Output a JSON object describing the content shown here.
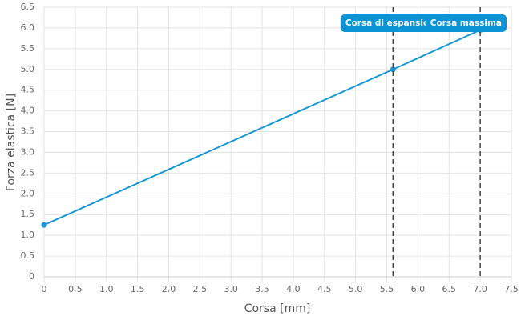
{
  "chart_data": {
    "type": "line",
    "x_label": "Corsa [mm]",
    "y_label": "Forza elastica [N]",
    "x": [
      0,
      5.6,
      7.0
    ],
    "series": [
      {
        "color": "#1a96d4",
        "values": [
          1.25,
          5.0,
          5.95
        ]
      }
    ],
    "xlim": [
      0,
      7.5
    ],
    "ylim": [
      0,
      6.5
    ],
    "xticks": [
      0,
      0.5,
      {
        "value": 1,
        "label": "1.0"
      },
      1.5,
      {
        "value": 2,
        "label": "2.0"
      },
      2.5,
      {
        "value": 3,
        "label": "3.0"
      },
      3.5,
      {
        "value": 4,
        "label": "4.0"
      },
      4.5,
      {
        "value": 5,
        "label": "5.0"
      },
      5.5,
      {
        "value": 6,
        "label": "6.0"
      },
      6.5,
      {
        "value": 7,
        "label": "7.0"
      },
      7.5
    ],
    "yticks": [
      0,
      0.5,
      {
        "value": 1,
        "label": "1.0"
      },
      1.5,
      {
        "value": 2,
        "label": "2.0"
      },
      2.5,
      {
        "value": 3,
        "label": "3.0"
      },
      3.5,
      {
        "value": 4,
        "label": "4.0"
      },
      4.5,
      {
        "value": 5,
        "label": "5.0"
      },
      5.5,
      {
        "value": 6,
        "label": "6.0"
      },
      6.5
    ],
    "grid": true,
    "annotations": [
      {
        "label": "Corsa di espansione",
        "x": 5.6,
        "color": "#0a94d6"
      },
      {
        "label": "Corsa massima",
        "x": 7.0,
        "color": "#0a94d6"
      }
    ]
  }
}
